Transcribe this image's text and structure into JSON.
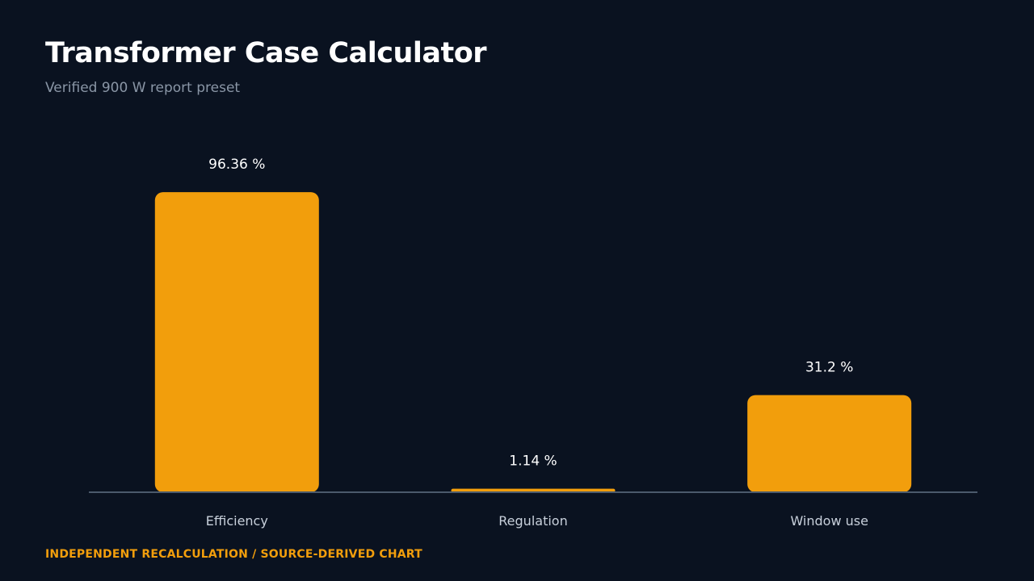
{
  "header": {
    "title": "Transformer Case Calculator",
    "subtitle": "Verified 900 W report preset"
  },
  "footer": {
    "note": "INDEPENDENT RECALCULATION / SOURCE-DERIVED CHART"
  },
  "colors": {
    "background": "#0a1220",
    "bar": "#f29e0c",
    "accent": "#f29e0c"
  },
  "chart_data": {
    "type": "bar",
    "categories": [
      "Efficiency",
      "Regulation",
      "Window use"
    ],
    "values": [
      96.36,
      1.14,
      31.2
    ],
    "value_labels": [
      "96.36 %",
      "1.14 %",
      "31.2 %"
    ],
    "unit": "%",
    "ylim": [
      0,
      100
    ],
    "grid": false,
    "legend": "none"
  }
}
